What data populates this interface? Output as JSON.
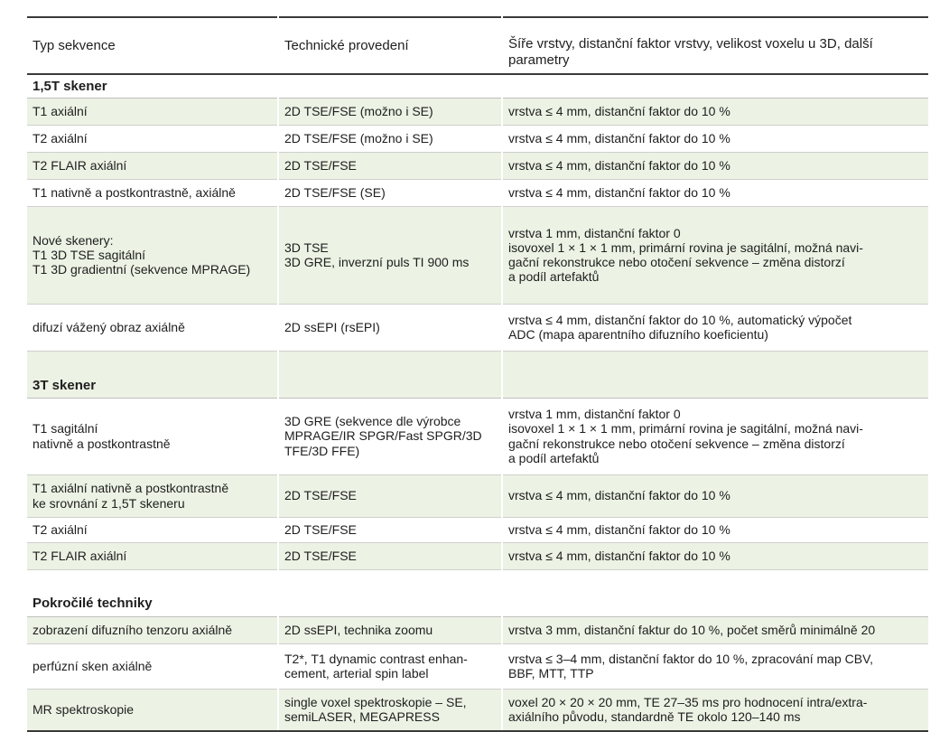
{
  "header": {
    "col1": "Typ sekvence",
    "col2": "Technické provedení",
    "col3": "Šíře vrstvy, distanční faktor vrstvy, velikost voxelu u 3D, další parametry"
  },
  "colors": {
    "shade": "#ecf2e4",
    "rule": "#3a3a3a"
  },
  "rows": [
    {
      "type": "section",
      "label": "1,5T skener",
      "shaded": false,
      "h": 26
    },
    {
      "type": "row",
      "shaded": true,
      "h": 30,
      "c1": "T1 axiální",
      "c2": "2D TSE/FSE (možno i SE)",
      "c3": "vrstva ≤ 4 mm, distanční faktor do 10 %"
    },
    {
      "type": "row",
      "shaded": false,
      "h": 30,
      "c1": "T2 axiální",
      "c2": "2D TSE/FSE (možno i SE)",
      "c3": "vrstva ≤ 4 mm, distanční faktor do 10 %"
    },
    {
      "type": "row",
      "shaded": true,
      "h": 30,
      "c1": "T2 FLAIR axiální",
      "c2": "2D TSE/FSE",
      "c3": "vrstva ≤ 4 mm, distanční faktor do 10 %"
    },
    {
      "type": "row",
      "shaded": false,
      "h": 30,
      "c1": "T1 nativně a postkontrastně, axiálně",
      "c2": "2D TSE/FSE (SE)",
      "c3": "vrstva ≤ 4 mm, distanční faktor do 10 %"
    },
    {
      "type": "row",
      "shaded": true,
      "h": 108,
      "c1": "Nové skenery:\nT1 3D TSE sagitální\nT1 3D gradientní (sekvence MPRAGE)\n ",
      "c2": "3D TSE\n3D GRE, inverzní puls TI 900 ms",
      "c3": "vrstva 1 mm, distanční faktor 0\nisovoxel 1 × 1 × 1 mm, primární rovina je sagitální, možná navi-\ngační rekonstrukce nebo otočení sekvence – změna distorzí\na podíl artefaktů"
    },
    {
      "type": "row",
      "shaded": false,
      "h": 52,
      "c1": "difuzí vážený obraz axiálně",
      "c2": "2D ssEPI (rsEPI)",
      "c3": "vrstva ≤ 4 mm, distanční faktor do 10 %, automatický výpočet\nADC (mapa aparentního difuzního koeficientu)"
    },
    {
      "type": "section",
      "label": "3T skener",
      "shaded": true,
      "h": 52
    },
    {
      "type": "row",
      "shaded": false,
      "h": 85,
      "c1": "T1 sagitální\nnativně a postkontrastně",
      "c2": "3D GRE (sekvence dle výrobce\nMPRAGE/IR SPGR/Fast SPGR/3D\nTFE/3D FFE)",
      "c3": "vrstva 1 mm, distanční faktor 0\nisovoxel 1 × 1 × 1 mm, primární rovina je sagitální, možná navi-\ngační rekonstrukce nebo otočení sekvence – změna distorzí\na podíl artefaktů"
    },
    {
      "type": "row",
      "shaded": true,
      "h": 47,
      "c1": "T1 axiální nativně a postkontrastně\nke srovnání z 1,5T skeneru",
      "c2": "2D TSE/FSE",
      "c3": "vrstva ≤ 4 mm, distanční faktor do 10 %"
    },
    {
      "type": "row",
      "shaded": false,
      "h": 28,
      "c1": "T2 axiální",
      "c2": "2D TSE/FSE",
      "c3": "vrstva ≤ 4 mm, distanční faktor do 10 %"
    },
    {
      "type": "row",
      "shaded": true,
      "h": 30,
      "c1": "T2 FLAIR axiální",
      "c2": "2D TSE/FSE",
      "c3": "vrstva ≤ 4 mm, distanční faktor do 10 %"
    },
    {
      "type": "section",
      "label": "Pokročilé techniky",
      "shaded": false,
      "h": 52,
      "bottomLabel": true
    },
    {
      "type": "row",
      "shaded": true,
      "h": 30,
      "c1": "zobrazení difuzního tenzoru axiálně",
      "c2": "2D ssEPI, technika zoomu",
      "c3": "vrstva 3 mm, distanční faktur do 10 %, počet směrů minimálně 20"
    },
    {
      "type": "row",
      "shaded": false,
      "h": 50,
      "c1": "perfúzní sken axiálně",
      "c2": "T2*, T1 dynamic contrast enhan-\ncement, arterial spin label",
      "c3": "vrstva ≤ 3–4 mm, distanční faktor do 10 %, zpracování map CBV,\nBBF, MTT, TTP"
    },
    {
      "type": "row",
      "shaded": true,
      "h": 47,
      "c1": "MR spektroskopie",
      "c2": "single voxel spektroskopie – SE,\nsemiLASER, MEGAPRESS",
      "c3": "voxel 20 × 20 × 20 mm, TE 27–35 ms pro hodnocení intra/extra-\naxiálního původu, standardně TE okolo 120–140 ms"
    }
  ]
}
